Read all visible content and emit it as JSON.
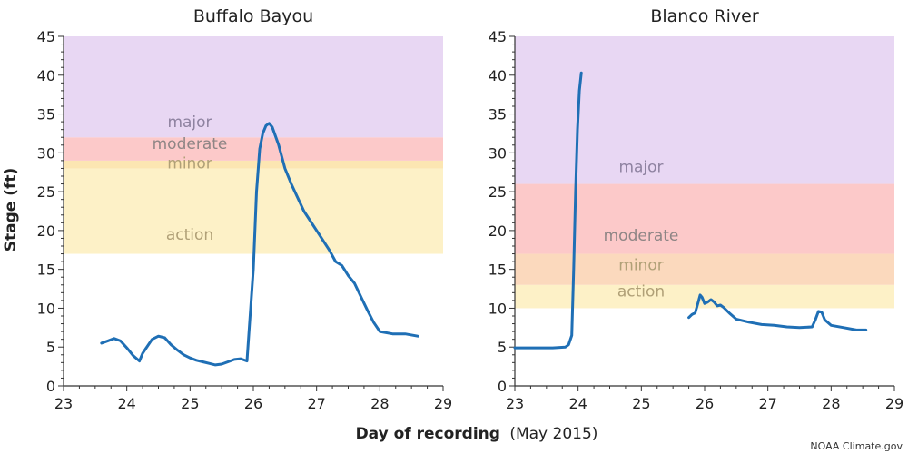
{
  "xlabel_bold": "Day of recording",
  "xlabel_rest": "(May 2015)",
  "ylabel": "Stage (ft)",
  "credit": "NOAA Climate.gov",
  "series_color": "#1f6fb5",
  "chart_data": [
    {
      "type": "line",
      "title": "Buffalo Bayou",
      "xlim": [
        23,
        29
      ],
      "ylim": [
        0,
        45
      ],
      "x_ticks": [
        "23",
        "24",
        "25",
        "26",
        "27",
        "28",
        "29"
      ],
      "y_ticks": [
        "0",
        "5",
        "10",
        "15",
        "20",
        "25",
        "30",
        "35",
        "40",
        "45"
      ],
      "grid": false,
      "bands": [
        {
          "name": "action",
          "from": 17,
          "to": 28,
          "color": "#fdf1c7",
          "label_color": "#b0a077",
          "label_at": 18.8
        },
        {
          "name": "minor",
          "from": 28,
          "to": 29,
          "color": "#fce6b2",
          "label_color": "#b0a077",
          "label_at": 28.0
        },
        {
          "name": "moderate",
          "from": 29,
          "to": 32,
          "color": "#fcc9c9",
          "label_color": "#8e8585",
          "label_at": 30.5
        },
        {
          "name": "major",
          "from": 32,
          "to": 45,
          "color": "#e8d7f3",
          "label_color": "#8e82a0",
          "label_at": 33.3
        }
      ],
      "series": [
        {
          "x": [
            23.6,
            23.7,
            23.8,
            23.9,
            24.0,
            24.1,
            24.2,
            24.25,
            24.3,
            24.4,
            24.5,
            24.6,
            24.7,
            24.8,
            24.9,
            25.0,
            25.1,
            25.2,
            25.3,
            25.4,
            25.5,
            25.6,
            25.7,
            25.8,
            25.9,
            26.0,
            26.05,
            26.1,
            26.15,
            26.2,
            26.25,
            26.3,
            26.4,
            26.5,
            26.6,
            26.8,
            27.0,
            27.2,
            27.3,
            27.4,
            27.5,
            27.6,
            27.7,
            27.8,
            27.9,
            28.0,
            28.2,
            28.4,
            28.6
          ],
          "y": [
            5.5,
            5.8,
            6.1,
            5.8,
            4.9,
            3.9,
            3.2,
            4.2,
            4.8,
            6.0,
            6.4,
            6.2,
            5.3,
            4.6,
            4.0,
            3.6,
            3.3,
            3.1,
            2.9,
            2.7,
            2.8,
            3.1,
            3.4,
            3.5,
            3.2,
            15.0,
            25.0,
            30.5,
            32.5,
            33.5,
            33.8,
            33.3,
            31.0,
            28.0,
            26.0,
            22.5,
            20.0,
            17.5,
            16.0,
            15.5,
            14.2,
            13.2,
            11.5,
            9.8,
            8.2,
            7.0,
            6.7,
            6.7,
            6.4
          ]
        }
      ]
    },
    {
      "type": "line",
      "title": "Blanco River",
      "xlim": [
        23,
        29
      ],
      "ylim": [
        0,
        45
      ],
      "x_ticks": [
        "23",
        "24",
        "25",
        "26",
        "27",
        "28",
        "29"
      ],
      "y_ticks": [
        "0",
        "5",
        "10",
        "15",
        "20",
        "25",
        "30",
        "35",
        "40",
        "45"
      ],
      "grid": false,
      "bands": [
        {
          "name": "action",
          "from": 10,
          "to": 13,
          "color": "#fdf1c7",
          "label_color": "#b0a077",
          "label_at": 11.5
        },
        {
          "name": "minor",
          "from": 13,
          "to": 17,
          "color": "#fbd9bd",
          "label_color": "#b0a077",
          "label_at": 14.9
        },
        {
          "name": "moderate",
          "from": 17,
          "to": 26,
          "color": "#fcc9c9",
          "label_color": "#8e8585",
          "label_at": 18.7
        },
        {
          "name": "major",
          "from": 26,
          "to": 45,
          "color": "#e8d7f3",
          "label_color": "#8e82a0",
          "label_at": 27.5
        }
      ],
      "series": [
        {
          "x": [
            23.0,
            23.3,
            23.6,
            23.8,
            23.85,
            23.9,
            23.93,
            23.96,
            23.99,
            24.02,
            24.05
          ],
          "y": [
            4.9,
            4.9,
            4.9,
            5.0,
            5.3,
            6.5,
            15.0,
            25.0,
            33.0,
            38.0,
            40.3
          ]
        },
        {
          "x": [
            25.75,
            25.8,
            25.85,
            25.9,
            25.93,
            25.96,
            26.0,
            26.05,
            26.1,
            26.15,
            26.2,
            26.25,
            26.3,
            26.4,
            26.5,
            26.7,
            26.9,
            27.1,
            27.3,
            27.5,
            27.7,
            27.75,
            27.8,
            27.85,
            27.9,
            28.0,
            28.2,
            28.4,
            28.55
          ],
          "y": [
            8.8,
            9.2,
            9.4,
            10.8,
            11.7,
            11.4,
            10.6,
            10.8,
            11.1,
            10.8,
            10.3,
            10.4,
            10.1,
            9.3,
            8.6,
            8.2,
            7.9,
            7.8,
            7.6,
            7.5,
            7.6,
            8.5,
            9.6,
            9.5,
            8.5,
            7.8,
            7.5,
            7.2,
            7.2
          ]
        }
      ]
    }
  ]
}
